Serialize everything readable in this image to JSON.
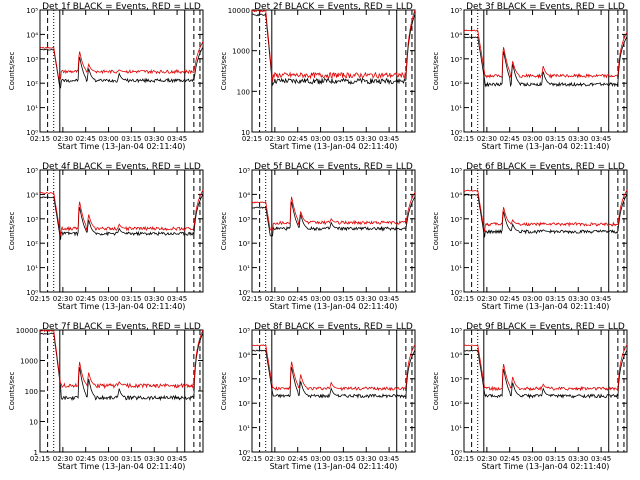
{
  "colors": {
    "events": "#000000",
    "lld": "#e00000",
    "axes": "#000000"
  },
  "common": {
    "xlabel": "Start Time (13-Jan-04 02:11:40)",
    "ylabel": "Counts/sec",
    "x_ticks": [
      "02:15",
      "02:30",
      "02:45",
      "03:00",
      "03:15",
      "03:30",
      "03:45"
    ],
    "x_range_min": [
      3,
      110
    ],
    "event_lines_min": {
      "solid": [
        16,
        98
      ],
      "dashed": [
        8,
        104,
        108
      ],
      "dotted": [
        12
      ]
    }
  },
  "chart_data": [
    {
      "type": "line",
      "title": "Det 1f BLACK = Events, RED = LLD",
      "yscale": "log",
      "ylim": [
        1,
        100000
      ],
      "y_ticks": [
        "10⁰",
        "10¹",
        "10²",
        "10³",
        "10⁴",
        "10⁵"
      ],
      "series": [
        {
          "name": "Events",
          "color": "#000000",
          "profile": {
            "pre": 2500,
            "base": 130,
            "spikes": [
              [
                29,
                1200
              ],
              [
                35,
                400
              ],
              [
                55,
                250
              ]
            ],
            "post": 3000
          }
        },
        {
          "name": "LLD",
          "color": "#e00000",
          "profile": {
            "pre": 3000,
            "base": 300,
            "spikes": [
              [
                29,
                2000
              ],
              [
                35,
                600
              ],
              [
                55,
                350
              ]
            ],
            "post": 5000
          }
        }
      ]
    },
    {
      "type": "line",
      "title": "Det 2f BLACK = Events, RED = LLD",
      "yscale": "log",
      "ylim": [
        10,
        10000
      ],
      "y_ticks": [
        "10",
        "100",
        "1000",
        "10000"
      ],
      "series": [
        {
          "name": "Events",
          "color": "#000000",
          "profile": {
            "pre": 8000,
            "base": 180,
            "spikes": [],
            "post": 8000
          }
        },
        {
          "name": "LLD",
          "color": "#e00000",
          "profile": {
            "pre": 10000,
            "base": 250,
            "spikes": [],
            "post": 10000
          }
        }
      ]
    },
    {
      "type": "line",
      "title": "Det 3f BLACK = Events, RED = LLD",
      "yscale": "log",
      "ylim": [
        1,
        100000
      ],
      "y_ticks": [
        "10⁰",
        "10¹",
        "10²",
        "10³",
        "10⁴",
        "10⁵"
      ],
      "series": [
        {
          "name": "Events",
          "color": "#000000",
          "profile": {
            "pre": 8000,
            "base": 90,
            "spikes": [
              [
                29,
                2000
              ],
              [
                35,
                600
              ],
              [
                55,
                300
              ]
            ],
            "post": 8000
          }
        },
        {
          "name": "LLD",
          "color": "#e00000",
          "profile": {
            "pre": 15000,
            "base": 200,
            "spikes": [
              [
                29,
                3000
              ],
              [
                35,
                800
              ],
              [
                55,
                500
              ]
            ],
            "post": 12000
          }
        }
      ]
    },
    {
      "type": "line",
      "title": "Det 4f BLACK = Events, RED = LLD",
      "yscale": "log",
      "ylim": [
        1,
        100000
      ],
      "y_ticks": [
        "10⁰",
        "10¹",
        "10²",
        "10³",
        "10⁴",
        "10⁵"
      ],
      "series": [
        {
          "name": "Events",
          "color": "#000000",
          "profile": {
            "pre": 8000,
            "base": 250,
            "spikes": [
              [
                29,
                3000
              ],
              [
                35,
                900
              ],
              [
                55,
                400
              ]
            ],
            "post": 10000
          }
        },
        {
          "name": "LLD",
          "color": "#e00000",
          "profile": {
            "pre": 12000,
            "base": 400,
            "spikes": [
              [
                29,
                5000
              ],
              [
                35,
                1500
              ],
              [
                55,
                600
              ]
            ],
            "post": 15000
          }
        }
      ]
    },
    {
      "type": "line",
      "title": "Det 5f BLACK = Events, RED = LLD",
      "yscale": "log",
      "ylim": [
        1,
        100000
      ],
      "y_ticks": [
        "10⁰",
        "10¹",
        "10²",
        "10³",
        "10⁴",
        "10⁵"
      ],
      "series": [
        {
          "name": "Events",
          "color": "#000000",
          "profile": {
            "pre": 3000,
            "base": 400,
            "spikes": [
              [
                29,
                5000
              ],
              [
                35,
                1500
              ],
              [
                55,
                700
              ]
            ],
            "post": 8000
          }
        },
        {
          "name": "LLD",
          "color": "#e00000",
          "profile": {
            "pre": 5000,
            "base": 700,
            "spikes": [
              [
                29,
                8000
              ],
              [
                35,
                2000
              ],
              [
                55,
                1000
              ]
            ],
            "post": 12000
          }
        }
      ]
    },
    {
      "type": "line",
      "title": "Det 6f BLACK = Events, RED = LLD",
      "yscale": "log",
      "ylim": [
        1,
        100000
      ],
      "y_ticks": [
        "10⁰",
        "10¹",
        "10²",
        "10³",
        "10⁴",
        "10⁵"
      ],
      "series": [
        {
          "name": "Events",
          "color": "#000000",
          "profile": {
            "pre": 10000,
            "base": 300,
            "spikes": [
              [
                29,
                2000
              ],
              [
                35,
                600
              ],
              [
                55,
                350
              ]
            ],
            "post": 10000
          }
        },
        {
          "name": "LLD",
          "color": "#e00000",
          "profile": {
            "pre": 15000,
            "base": 600,
            "spikes": [
              [
                29,
                3000
              ],
              [
                35,
                900
              ],
              [
                55,
                500
              ]
            ],
            "post": 15000
          }
        }
      ]
    },
    {
      "type": "line",
      "title": "Det 7f BLACK = Events, RED = LLD",
      "yscale": "log",
      "ylim": [
        1,
        10000
      ],
      "y_ticks": [
        "1",
        "10",
        "100",
        "1000",
        "10000"
      ],
      "series": [
        {
          "name": "Events",
          "color": "#000000",
          "profile": {
            "pre": 8000,
            "base": 60,
            "spikes": [
              [
                29,
                600
              ],
              [
                35,
                250
              ],
              [
                55,
                120
              ]
            ],
            "post": 8000
          }
        },
        {
          "name": "LLD",
          "color": "#e00000",
          "profile": {
            "pre": 10000,
            "base": 150,
            "spikes": [
              [
                29,
                900
              ],
              [
                35,
                400
              ],
              [
                55,
                200
              ]
            ],
            "post": 10000
          }
        }
      ]
    },
    {
      "type": "line",
      "title": "Det 8f BLACK = Events, RED = LLD",
      "yscale": "log",
      "ylim": [
        1,
        100000
      ],
      "y_ticks": [
        "10⁰",
        "10¹",
        "10²",
        "10³",
        "10⁴",
        "10⁵"
      ],
      "series": [
        {
          "name": "Events",
          "color": "#000000",
          "profile": {
            "pre": 15000,
            "base": 200,
            "spikes": [
              [
                29,
                3000
              ],
              [
                35,
                800
              ],
              [
                55,
                400
              ]
            ],
            "post": 15000
          }
        },
        {
          "name": "LLD",
          "color": "#e00000",
          "profile": {
            "pre": 25000,
            "base": 400,
            "spikes": [
              [
                29,
                5000
              ],
              [
                35,
                1500
              ],
              [
                55,
                700
              ]
            ],
            "post": 25000
          }
        }
      ]
    },
    {
      "type": "line",
      "title": "Det 9f BLACK = Events, RED = LLD",
      "yscale": "log",
      "ylim": [
        1,
        100000
      ],
      "y_ticks": [
        "10⁰",
        "10¹",
        "10²",
        "10³",
        "10⁴",
        "10⁵"
      ],
      "series": [
        {
          "name": "Events",
          "color": "#000000",
          "profile": {
            "pre": 15000,
            "base": 200,
            "spikes": [
              [
                29,
                2500
              ],
              [
                35,
                700
              ],
              [
                55,
                400
              ]
            ],
            "post": 15000
          }
        },
        {
          "name": "LLD",
          "color": "#e00000",
          "profile": {
            "pre": 25000,
            "base": 400,
            "spikes": [
              [
                29,
                4000
              ],
              [
                35,
                1200
              ],
              [
                55,
                600
              ]
            ],
            "post": 25000
          }
        }
      ]
    }
  ]
}
